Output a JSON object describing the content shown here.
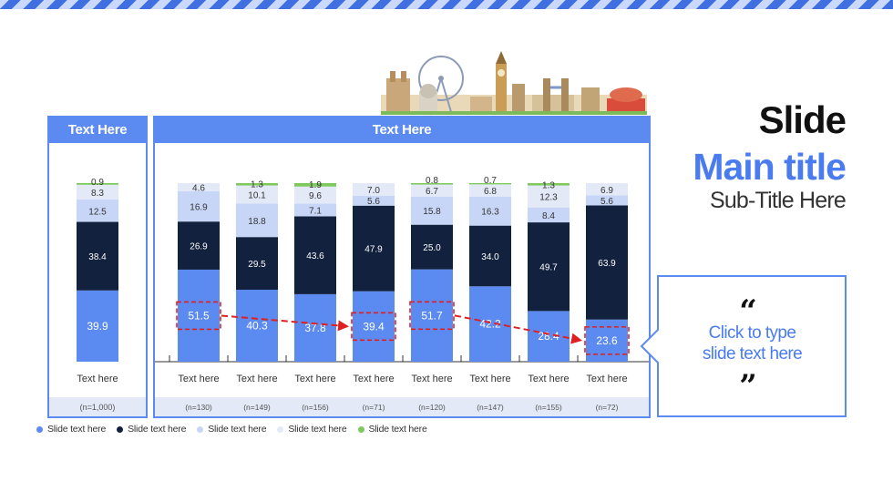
{
  "title": {
    "slide": "Slide",
    "main": "Main title",
    "sub": "Sub-Title Here"
  },
  "callout": {
    "open_quote": "“",
    "text_line1": "Click to type",
    "text_line2": "slide text here",
    "close_quote": "”"
  },
  "colors": {
    "accent": "#5b8af0",
    "navy": "#12213d",
    "light": "#c7d6f7",
    "pale": "#e3e9f7",
    "green": "#7dc95e"
  },
  "chart_data": {
    "type": "bar",
    "stacked": true,
    "left_panel": {
      "header": "Text Here",
      "category": "Text here",
      "n": "(n=1,000)",
      "segments": [
        39.9,
        38.4,
        12.5,
        8.3,
        0.9
      ]
    },
    "main_panel": {
      "header": "Text Here",
      "categories": [
        "Text here",
        "Text here",
        "Text here",
        "Text here",
        "Text here",
        "Text here",
        "Text here",
        "Text here"
      ],
      "n": [
        "(n=130)",
        "(n=149)",
        "(n=156)",
        "(n=71)",
        "(n=120)",
        "(n=147)",
        "(n=155)",
        "(n=72)"
      ],
      "series": [
        {
          "name": "Slide text here",
          "color": "#5b8af0",
          "values": [
            51.5,
            40.3,
            37.8,
            39.4,
            51.7,
            42.2,
            28.4,
            23.6
          ]
        },
        {
          "name": "Slide text here",
          "color": "#12213d",
          "values": [
            26.9,
            29.5,
            43.6,
            47.9,
            25.0,
            34.0,
            49.7,
            63.9
          ]
        },
        {
          "name": "Slide text here",
          "color": "#c7d6f7",
          "values": [
            16.9,
            18.8,
            7.1,
            5.6,
            15.8,
            16.3,
            8.4,
            5.6
          ]
        },
        {
          "name": "Slide text here",
          "color": "#e3e9f7",
          "values": [
            4.6,
            10.1,
            9.6,
            7.0,
            6.7,
            6.8,
            12.3,
            6.9
          ]
        },
        {
          "name": "Slide text here",
          "color": "#7dc95e",
          "values": [
            null,
            1.3,
            1.9,
            null,
            0.8,
            0.7,
            1.3,
            null
          ]
        }
      ],
      "highlighted_bars": [
        0,
        3,
        4,
        7
      ],
      "arrows": [
        [
          0,
          3
        ],
        [
          4,
          7
        ]
      ]
    },
    "ylim": [
      0,
      100
    ],
    "legend": [
      "Slide text here",
      "Slide text here",
      "Slide text here",
      "Slide text here",
      "Slide text here"
    ],
    "legend_placement": "bottom-left"
  }
}
